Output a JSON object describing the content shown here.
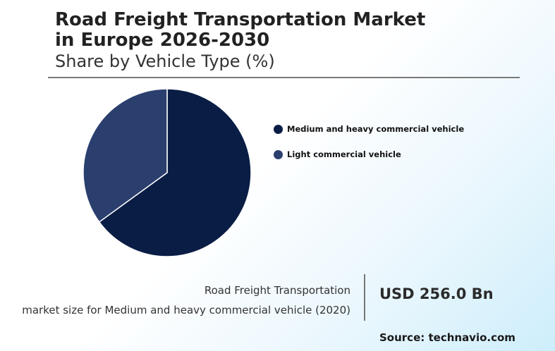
{
  "header": {
    "title_line1": "Road Freight Transportation Market",
    "title_line2": "in Europe 2026-2030",
    "subtitle": "Share by Vehicle Type (%)"
  },
  "chart_data": {
    "type": "pie",
    "title": "Road Freight Transportation Market in Europe 2026-2030",
    "subtitle": "Share by Vehicle Type (%)",
    "categories": [
      "Medium and heavy commercial vehicle",
      "Light commercial vehicle"
    ],
    "values": [
      65,
      35
    ],
    "colors": [
      "#0a1d45",
      "#2b3f6e"
    ],
    "legend_placement": "right"
  },
  "metric": {
    "label_line1": "Road Freight Transportation",
    "label_line2": "market size for Medium and heavy commercial vehicle (2020)",
    "value": "USD 256.0 Bn"
  },
  "source": "Source: technavio.com"
}
